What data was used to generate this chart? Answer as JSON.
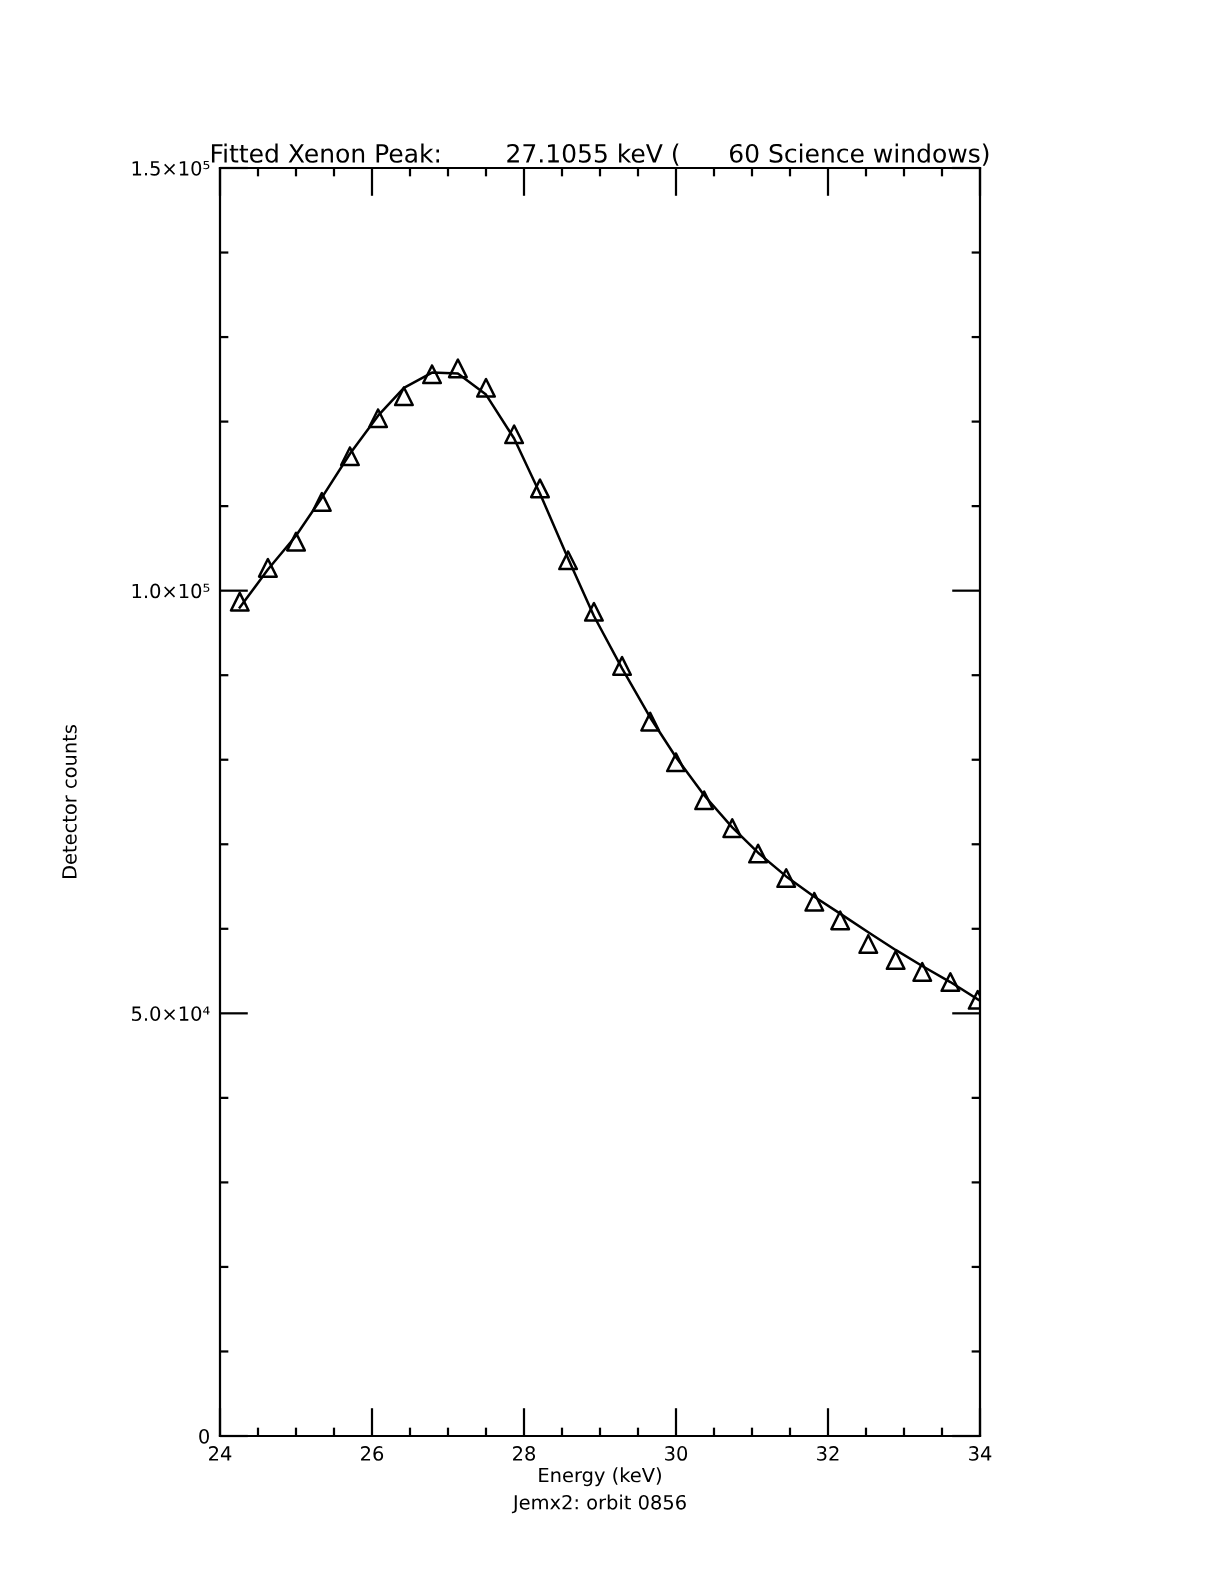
{
  "chart_data": {
    "type": "scatter",
    "title": "Fitted Xenon Peak:        27.1055 keV (      60 Science windows)",
    "xlabel": "Energy (keV)",
    "ylabel": "Detector counts",
    "annotations": [
      "Jemx2: orbit 0856"
    ],
    "xlim": [
      24,
      34
    ],
    "ylim": [
      0,
      150000
    ],
    "xticks": [
      24,
      {
        "value": 24.5,
        "label": null
      },
      {
        "value": 25,
        "label": null
      },
      {
        "value": 25.5,
        "label": null
      },
      26,
      {
        "value": 26.5,
        "label": null
      },
      {
        "value": 27,
        "label": null
      },
      {
        "value": 27.5,
        "label": null
      },
      28,
      {
        "value": 28.5,
        "label": null
      },
      {
        "value": 29,
        "label": null
      },
      {
        "value": 29.5,
        "label": null
      },
      30,
      {
        "value": 30.5,
        "label": null
      },
      {
        "value": 31,
        "label": null
      },
      {
        "value": 31.5,
        "label": null
      },
      32,
      {
        "value": 32.5,
        "label": null
      },
      {
        "value": 33,
        "label": null
      },
      {
        "value": 33.5,
        "label": null
      },
      34
    ],
    "yticks": [
      0,
      {
        "value": 10000,
        "label": null
      },
      {
        "value": 20000,
        "label": null
      },
      {
        "value": 30000,
        "label": null
      },
      {
        "value": 40000,
        "label": null
      },
      {
        "value": 50000,
        "label": "5.0×10⁴"
      },
      {
        "value": 60000,
        "label": null
      },
      {
        "value": 70000,
        "label": null
      },
      {
        "value": 80000,
        "label": null
      },
      {
        "value": 90000,
        "label": null
      },
      {
        "value": 100000,
        "label": "1.0×10⁵"
      },
      {
        "value": 110000,
        "label": null
      },
      {
        "value": 120000,
        "label": null
      },
      {
        "value": 130000,
        "label": null
      },
      {
        "value": 140000,
        "label": null
      },
      {
        "value": 150000,
        "label": "1.5×10⁵"
      }
    ],
    "grid": false,
    "legend": false,
    "series": [
      {
        "marker": "triangle",
        "color": "#000000",
        "x": [
          24.26,
          24.63,
          25.0,
          25.34,
          25.71,
          26.08,
          26.42,
          26.79,
          27.13,
          27.5,
          27.87,
          28.21,
          28.58,
          28.92,
          29.29,
          29.66,
          30.0,
          30.37,
          30.74,
          31.08,
          31.45,
          31.82,
          32.16,
          32.53,
          32.89,
          33.24,
          33.61,
          33.97
        ],
        "values": [
          98700,
          102700,
          105800,
          110500,
          115900,
          120400,
          123000,
          125600,
          126300,
          124000,
          118500,
          112100,
          103600,
          97500,
          91100,
          84500,
          79700,
          75200,
          71900,
          68900,
          66000,
          63200,
          61000,
          58200,
          56300,
          54900,
          53700,
          51600
        ]
      },
      {
        "type": "line",
        "marker": "none",
        "line_style": "solid",
        "color": "#000000",
        "x": [
          24.26,
          24.63,
          25.0,
          25.34,
          25.71,
          26.08,
          26.42,
          26.79,
          27.13,
          27.5,
          27.87,
          28.21,
          28.58,
          28.92,
          29.29,
          29.66,
          30.0,
          30.37,
          30.74,
          31.08,
          31.45,
          31.82,
          32.16,
          32.53,
          32.89,
          33.24,
          33.61,
          34.0
        ],
        "values": [
          98000,
          102500,
          106500,
          111000,
          116200,
          120700,
          124000,
          125800,
          125700,
          123200,
          118000,
          111500,
          103800,
          97000,
          90800,
          85000,
          80300,
          75800,
          72000,
          69000,
          66200,
          63800,
          61800,
          59600,
          57500,
          55600,
          53700,
          51500
        ]
      }
    ]
  }
}
